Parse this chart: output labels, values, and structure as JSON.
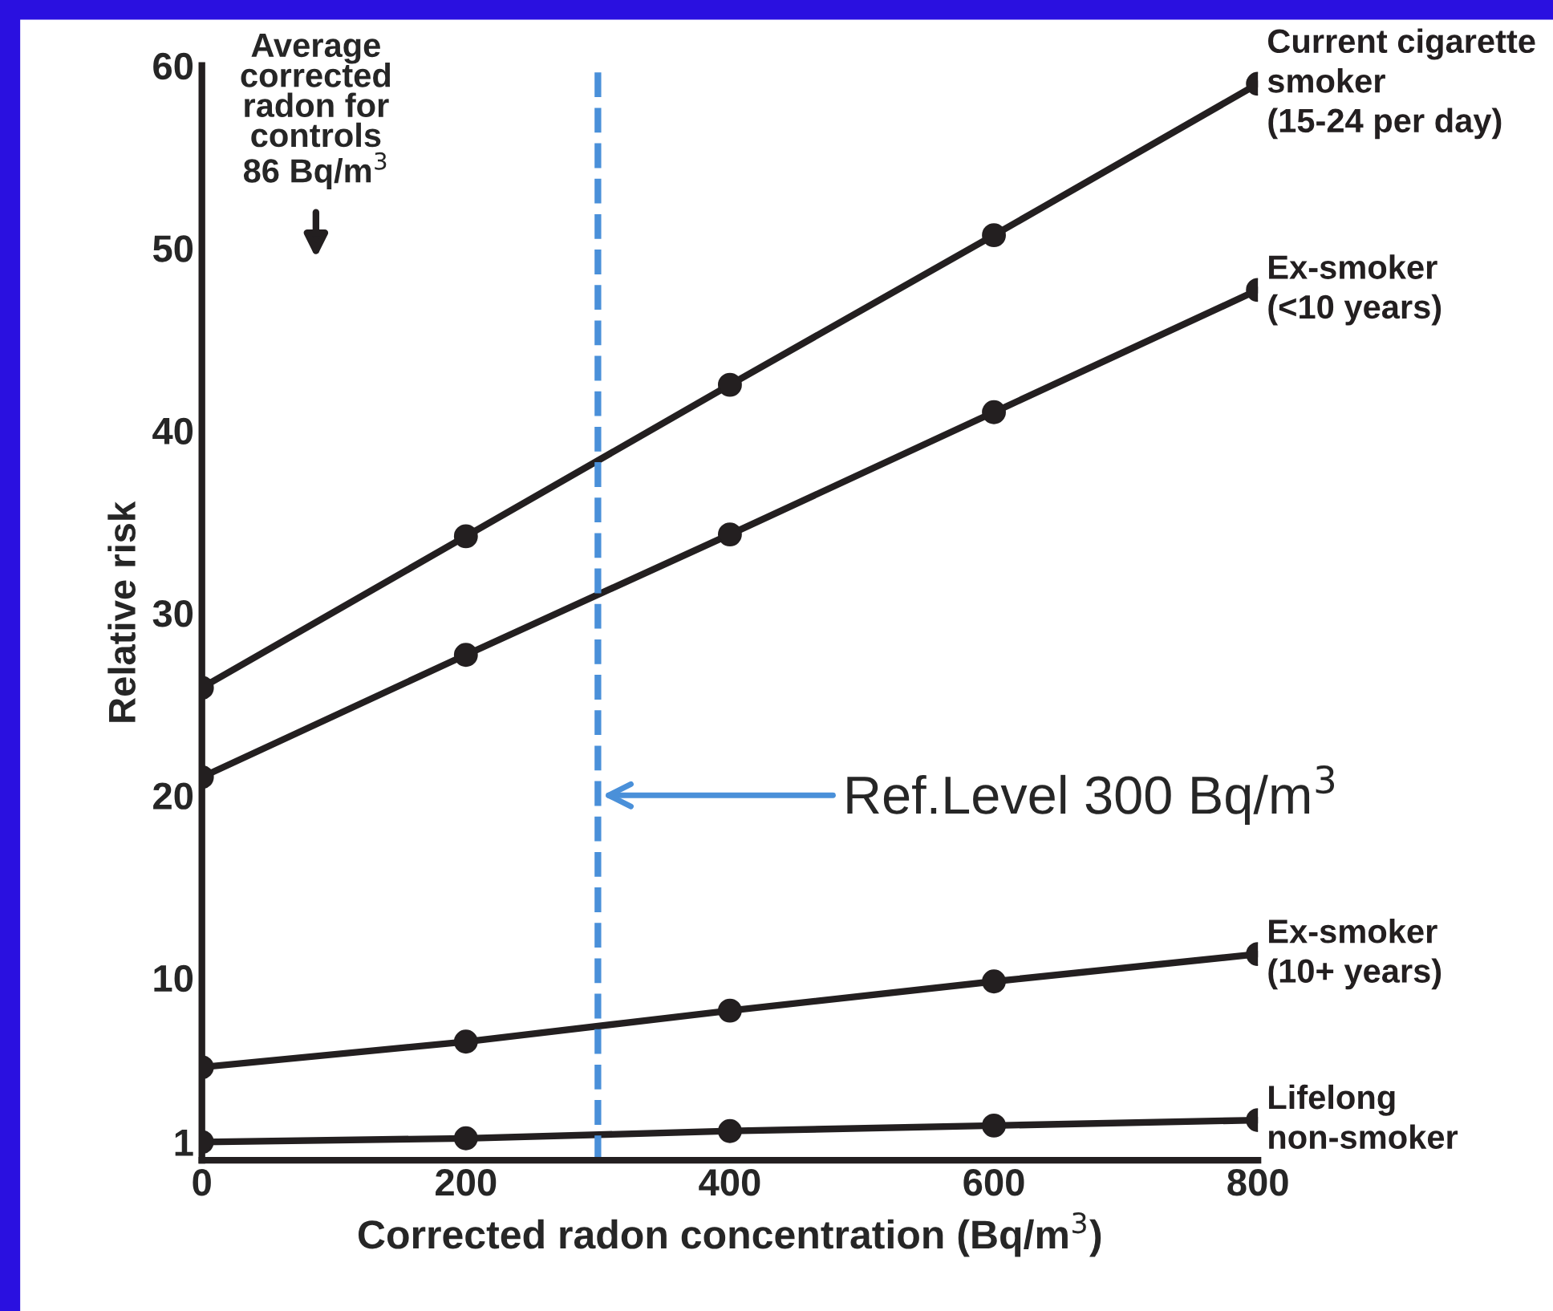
{
  "chart_data": {
    "type": "line",
    "xlabel": "Corrected radon concentration (Bq/m$^{3}$)",
    "ylabel": "Relative risk",
    "x": [
      0,
      200,
      400,
      600,
      800
    ],
    "series": [
      {
        "name": "Current cigarette\nsmoker\n(15-24 per day)",
        "color": "#231f20",
        "values": [
          25.9,
          34.2,
          42.5,
          50.7,
          59.0
        ]
      },
      {
        "name": "Ex-smoker\n(<10 years)",
        "color": "#231f20",
        "values": [
          21.0,
          27.7,
          34.3,
          41.0,
          47.7
        ]
      },
      {
        "name": "Ex-smoker\n(10+ years)",
        "color": "#231f20",
        "values": [
          5.1,
          6.5,
          8.2,
          9.8,
          11.3
        ]
      },
      {
        "name": "Lifelong\nnon-smoker",
        "color": "#231f20",
        "values": [
          1.0,
          1.2,
          1.6,
          1.9,
          2.2
        ]
      }
    ],
    "xlim": [
      0,
      800
    ],
    "xticks": [
      0,
      200,
      400,
      600,
      800
    ],
    "ylim": [
      0,
      60
    ],
    "yticks": [
      1,
      10,
      20,
      30,
      40,
      50,
      60
    ],
    "ref_lines": [
      {
        "axis": "x",
        "value": 300,
        "label": "Ref.Level 300 Bq/m$^{3}$",
        "color": "#4a90d9",
        "line_style": "dashed"
      }
    ],
    "annotations": [
      "Average\ncorrected\nradon for\ncontrols\n86 Bq/m$^{3}$"
    ],
    "marker": "circle",
    "line_style": "solid",
    "grid": false,
    "legend": false
  }
}
